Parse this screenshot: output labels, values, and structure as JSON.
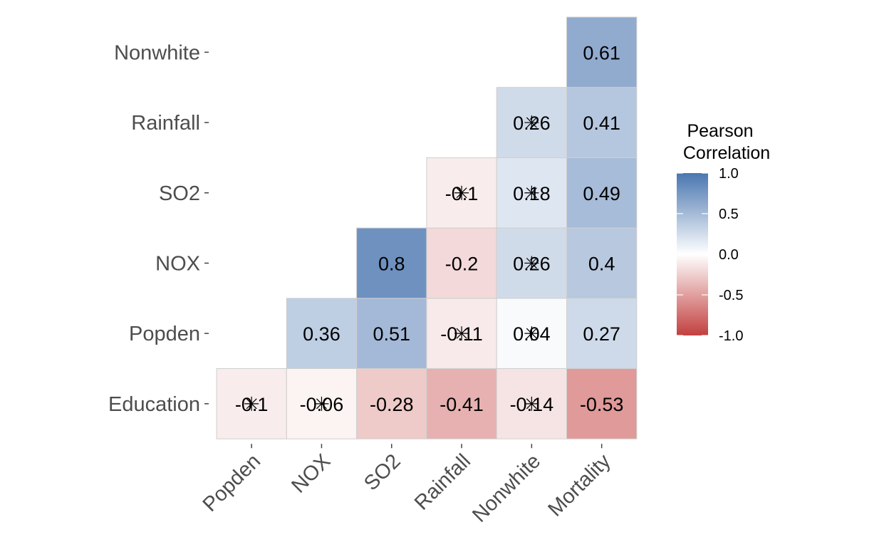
{
  "chart_data": {
    "type": "heatmap",
    "x_categories": [
      "Popden",
      "NOX",
      "SO2",
      "Rainfall",
      "Nonwhite",
      "Mortality"
    ],
    "y_categories": [
      "Education",
      "Popden",
      "NOX",
      "SO2",
      "Rainfall",
      "Nonwhite"
    ],
    "cells": [
      {
        "x": "Popden",
        "y": "Education",
        "value": -0.1,
        "label": "-0.1",
        "insignificant": true
      },
      {
        "x": "NOX",
        "y": "Education",
        "value": -0.06,
        "label": "-0.06",
        "insignificant": true
      },
      {
        "x": "SO2",
        "y": "Education",
        "value": -0.28,
        "label": "-0.28",
        "insignificant": false
      },
      {
        "x": "Rainfall",
        "y": "Education",
        "value": -0.41,
        "label": "-0.41",
        "insignificant": false
      },
      {
        "x": "Nonwhite",
        "y": "Education",
        "value": -0.14,
        "label": "-0.14",
        "insignificant": true
      },
      {
        "x": "Mortality",
        "y": "Education",
        "value": -0.53,
        "label": "-0.53",
        "insignificant": false
      },
      {
        "x": "NOX",
        "y": "Popden",
        "value": 0.36,
        "label": "0.36",
        "insignificant": false
      },
      {
        "x": "SO2",
        "y": "Popden",
        "value": 0.51,
        "label": "0.51",
        "insignificant": false
      },
      {
        "x": "Rainfall",
        "y": "Popden",
        "value": -0.11,
        "label": "-0.11",
        "insignificant": true
      },
      {
        "x": "Nonwhite",
        "y": "Popden",
        "value": 0.04,
        "label": "0.04",
        "insignificant": true
      },
      {
        "x": "Mortality",
        "y": "Popden",
        "value": 0.27,
        "label": "0.27",
        "insignificant": false
      },
      {
        "x": "SO2",
        "y": "NOX",
        "value": 0.8,
        "label": "0.8",
        "insignificant": false
      },
      {
        "x": "Rainfall",
        "y": "NOX",
        "value": -0.2,
        "label": "-0.2",
        "insignificant": false
      },
      {
        "x": "Nonwhite",
        "y": "NOX",
        "value": 0.26,
        "label": "0.26",
        "insignificant": true
      },
      {
        "x": "Mortality",
        "y": "NOX",
        "value": 0.4,
        "label": "0.4",
        "insignificant": false
      },
      {
        "x": "Rainfall",
        "y": "SO2",
        "value": -0.1,
        "label": "-0.1",
        "insignificant": true
      },
      {
        "x": "Nonwhite",
        "y": "SO2",
        "value": 0.18,
        "label": "0.18",
        "insignificant": true
      },
      {
        "x": "Mortality",
        "y": "SO2",
        "value": 0.49,
        "label": "0.49",
        "insignificant": false
      },
      {
        "x": "Nonwhite",
        "y": "Rainfall",
        "value": 0.26,
        "label": "0.26",
        "insignificant": true
      },
      {
        "x": "Mortality",
        "y": "Rainfall",
        "value": 0.41,
        "label": "0.41",
        "insignificant": false
      },
      {
        "x": "Mortality",
        "y": "Nonwhite",
        "value": 0.61,
        "label": "0.61",
        "insignificant": false
      }
    ],
    "legend": {
      "title_lines": [
        "Pearson",
        "Correlation"
      ],
      "ticks": [
        {
          "value": 1.0,
          "label": "1.0"
        },
        {
          "value": 0.5,
          "label": "0.5"
        },
        {
          "value": 0.0,
          "label": "0.0"
        },
        {
          "value": -0.5,
          "label": "-0.5"
        },
        {
          "value": -1.0,
          "label": "-1.0"
        }
      ],
      "placement": "right"
    },
    "color_scale": {
      "low": "#c2403f",
      "mid": "#ffffff",
      "high": "#4a76b0",
      "limits": [
        -1,
        1
      ]
    },
    "title": "",
    "xlabel": "",
    "ylabel": "",
    "grid": false
  }
}
